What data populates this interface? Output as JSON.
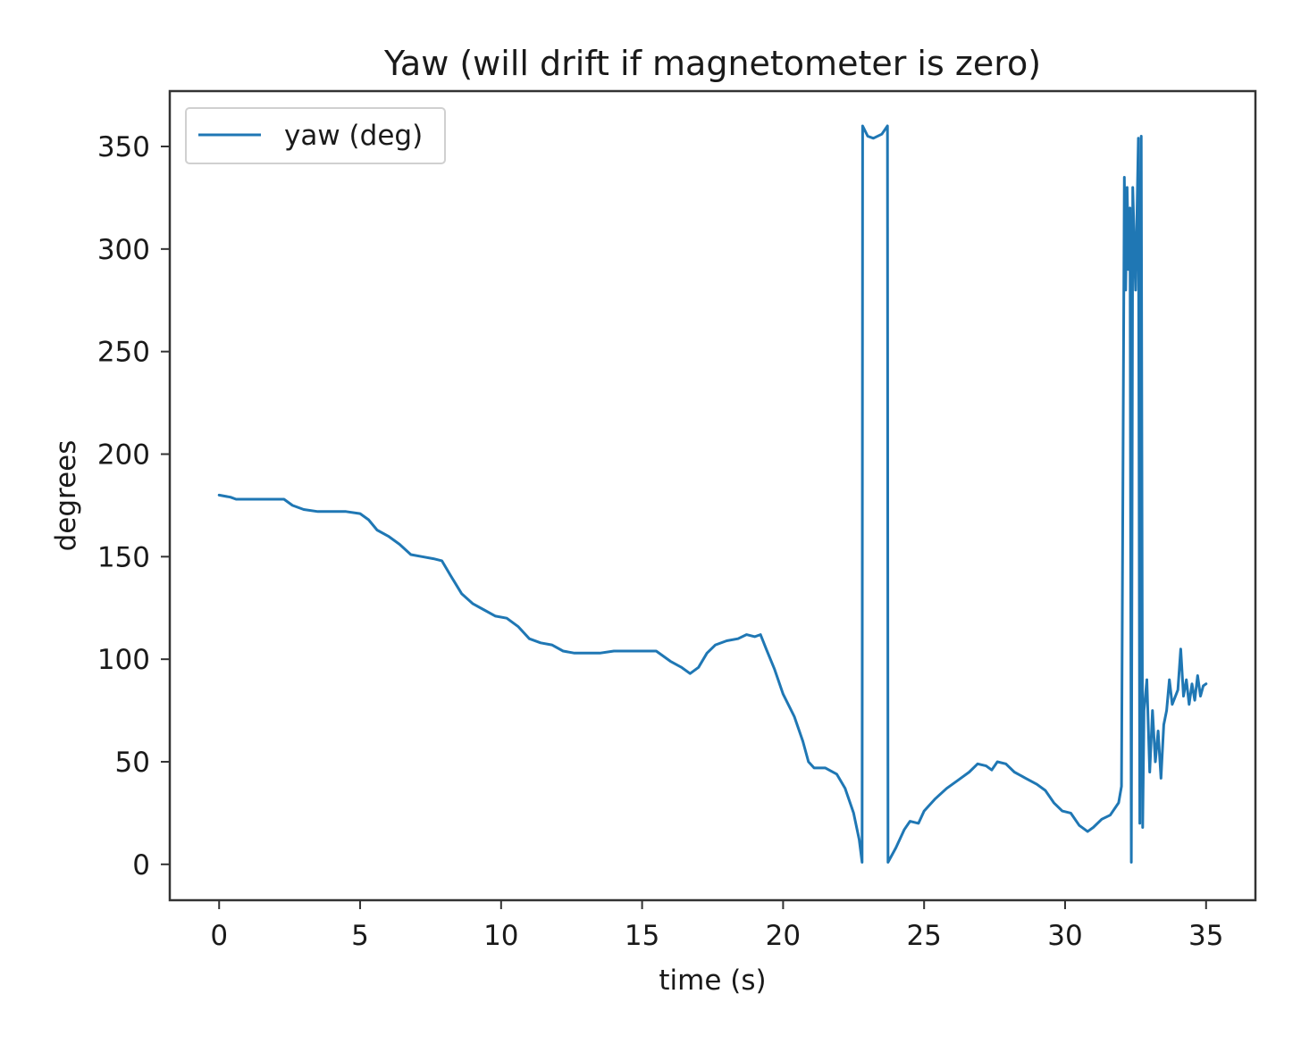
{
  "chart_data": {
    "type": "line",
    "title": "Yaw (will drift if magnetometer is zero)",
    "xlabel": "time (s)",
    "ylabel": "degrees",
    "xlim": [
      -1.75,
      36.75
    ],
    "ylim": [
      -17.5,
      377
    ],
    "xticks": [
      0,
      5,
      10,
      15,
      20,
      25,
      30,
      35
    ],
    "yticks": [
      0,
      50,
      100,
      150,
      200,
      250,
      300,
      350
    ],
    "grid": false,
    "legend_position": "top-left",
    "colors": {
      "series": "#1f77b4",
      "frame": "#333333"
    },
    "series": [
      {
        "name": "yaw (deg)",
        "points": [
          [
            0.0,
            180
          ],
          [
            0.4,
            179
          ],
          [
            0.6,
            178
          ],
          [
            1.0,
            178
          ],
          [
            1.5,
            178
          ],
          [
            2.0,
            178
          ],
          [
            2.3,
            178
          ],
          [
            2.6,
            175
          ],
          [
            3.0,
            173
          ],
          [
            3.5,
            172
          ],
          [
            4.0,
            172
          ],
          [
            4.5,
            172
          ],
          [
            5.0,
            171
          ],
          [
            5.3,
            168
          ],
          [
            5.6,
            163
          ],
          [
            6.0,
            160
          ],
          [
            6.4,
            156
          ],
          [
            6.8,
            151
          ],
          [
            7.2,
            150
          ],
          [
            7.6,
            149
          ],
          [
            7.9,
            148
          ],
          [
            8.2,
            141
          ],
          [
            8.6,
            132
          ],
          [
            9.0,
            127
          ],
          [
            9.4,
            124
          ],
          [
            9.8,
            121
          ],
          [
            10.2,
            120
          ],
          [
            10.6,
            116
          ],
          [
            11.0,
            110
          ],
          [
            11.4,
            108
          ],
          [
            11.8,
            107
          ],
          [
            12.2,
            104
          ],
          [
            12.6,
            103
          ],
          [
            13.0,
            103
          ],
          [
            13.5,
            103
          ],
          [
            14.0,
            104
          ],
          [
            14.5,
            104
          ],
          [
            15.0,
            104
          ],
          [
            15.5,
            104
          ],
          [
            16.0,
            99
          ],
          [
            16.4,
            96
          ],
          [
            16.7,
            93
          ],
          [
            17.0,
            96
          ],
          [
            17.3,
            103
          ],
          [
            17.6,
            107
          ],
          [
            18.0,
            109
          ],
          [
            18.4,
            110
          ],
          [
            18.7,
            112
          ],
          [
            19.0,
            111
          ],
          [
            19.2,
            112
          ],
          [
            19.4,
            105
          ],
          [
            19.7,
            95
          ],
          [
            20.0,
            83
          ],
          [
            20.4,
            72
          ],
          [
            20.7,
            60
          ],
          [
            20.9,
            50
          ],
          [
            21.1,
            47
          ],
          [
            21.5,
            47
          ],
          [
            21.9,
            44
          ],
          [
            22.2,
            37
          ],
          [
            22.5,
            25
          ],
          [
            22.7,
            12
          ],
          [
            22.8,
            1
          ],
          [
            22.82,
            360
          ],
          [
            23.0,
            355
          ],
          [
            23.2,
            354
          ],
          [
            23.5,
            356
          ],
          [
            23.7,
            360
          ],
          [
            23.72,
            1
          ],
          [
            24.0,
            8
          ],
          [
            24.3,
            17
          ],
          [
            24.5,
            21
          ],
          [
            24.8,
            20
          ],
          [
            25.0,
            26
          ],
          [
            25.4,
            32
          ],
          [
            25.8,
            37
          ],
          [
            26.2,
            41
          ],
          [
            26.6,
            45
          ],
          [
            26.9,
            49
          ],
          [
            27.2,
            48
          ],
          [
            27.4,
            46
          ],
          [
            27.6,
            50
          ],
          [
            27.9,
            49
          ],
          [
            28.2,
            45
          ],
          [
            28.6,
            42
          ],
          [
            29.0,
            39
          ],
          [
            29.3,
            36
          ],
          [
            29.6,
            30
          ],
          [
            29.9,
            26
          ],
          [
            30.2,
            25
          ],
          [
            30.5,
            19
          ],
          [
            30.8,
            16
          ],
          [
            31.0,
            18
          ],
          [
            31.3,
            22
          ],
          [
            31.6,
            24
          ],
          [
            31.9,
            30
          ],
          [
            32.0,
            38
          ],
          [
            32.1,
            335
          ],
          [
            32.15,
            280
          ],
          [
            32.2,
            330
          ],
          [
            32.25,
            290
          ],
          [
            32.3,
            320
          ],
          [
            32.35,
            1
          ],
          [
            32.4,
            330
          ],
          [
            32.5,
            280
          ],
          [
            32.6,
            354
          ],
          [
            32.65,
            20
          ],
          [
            32.7,
            355
          ],
          [
            32.75,
            18
          ],
          [
            32.8,
            75
          ],
          [
            32.9,
            90
          ],
          [
            33.0,
            45
          ],
          [
            33.1,
            75
          ],
          [
            33.2,
            50
          ],
          [
            33.3,
            65
          ],
          [
            33.4,
            42
          ],
          [
            33.5,
            68
          ],
          [
            33.6,
            75
          ],
          [
            33.7,
            90
          ],
          [
            33.8,
            78
          ],
          [
            34.0,
            85
          ],
          [
            34.1,
            105
          ],
          [
            34.2,
            82
          ],
          [
            34.3,
            90
          ],
          [
            34.4,
            78
          ],
          [
            34.5,
            88
          ],
          [
            34.6,
            80
          ],
          [
            34.7,
            92
          ],
          [
            34.8,
            82
          ],
          [
            34.9,
            87
          ],
          [
            35.0,
            88
          ]
        ]
      }
    ]
  }
}
